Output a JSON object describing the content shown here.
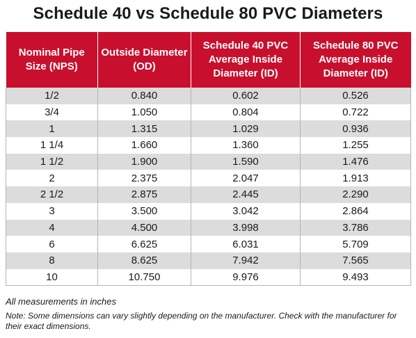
{
  "title": "Schedule 40 vs Schedule 80 PVC Diameters",
  "colors": {
    "header_bg": "#c8102e",
    "row_alt": "#dcdcdc"
  },
  "table": {
    "headers": [
      "Nominal Pipe Size (NPS)",
      "Outside Diameter (OD)",
      "Schedule 40 PVC Average Inside Diameter (ID)",
      "Schedule 80 PVC Average Inside Diameter (ID)"
    ],
    "rows": [
      [
        "1/2",
        "0.840",
        "0.602",
        "0.526"
      ],
      [
        "3/4",
        "1.050",
        "0.804",
        "0.722"
      ],
      [
        "1",
        "1.315",
        "1.029",
        "0.936"
      ],
      [
        "1 1/4",
        "1.660",
        "1.360",
        "1.255"
      ],
      [
        "1 1/2",
        "1.900",
        "1.590",
        "1.476"
      ],
      [
        "2",
        "2.375",
        "2.047",
        "1.913"
      ],
      [
        "2 1/2",
        "2.875",
        "2.445",
        "2.290"
      ],
      [
        "3",
        "3.500",
        "3.042",
        "2.864"
      ],
      [
        "4",
        "4.500",
        "3.998",
        "3.786"
      ],
      [
        "6",
        "6.625",
        "6.031",
        "5.709"
      ],
      [
        "8",
        "8.625",
        "7.942",
        "7.565"
      ],
      [
        "10",
        "10.750",
        "9.976",
        "9.493"
      ]
    ]
  },
  "footnote_units": "All measurements in inches",
  "footnote_note": "Note: Some dimensions can vary slightly depending on the manufacturer. Check with the manufacturer for their exact dimensions."
}
